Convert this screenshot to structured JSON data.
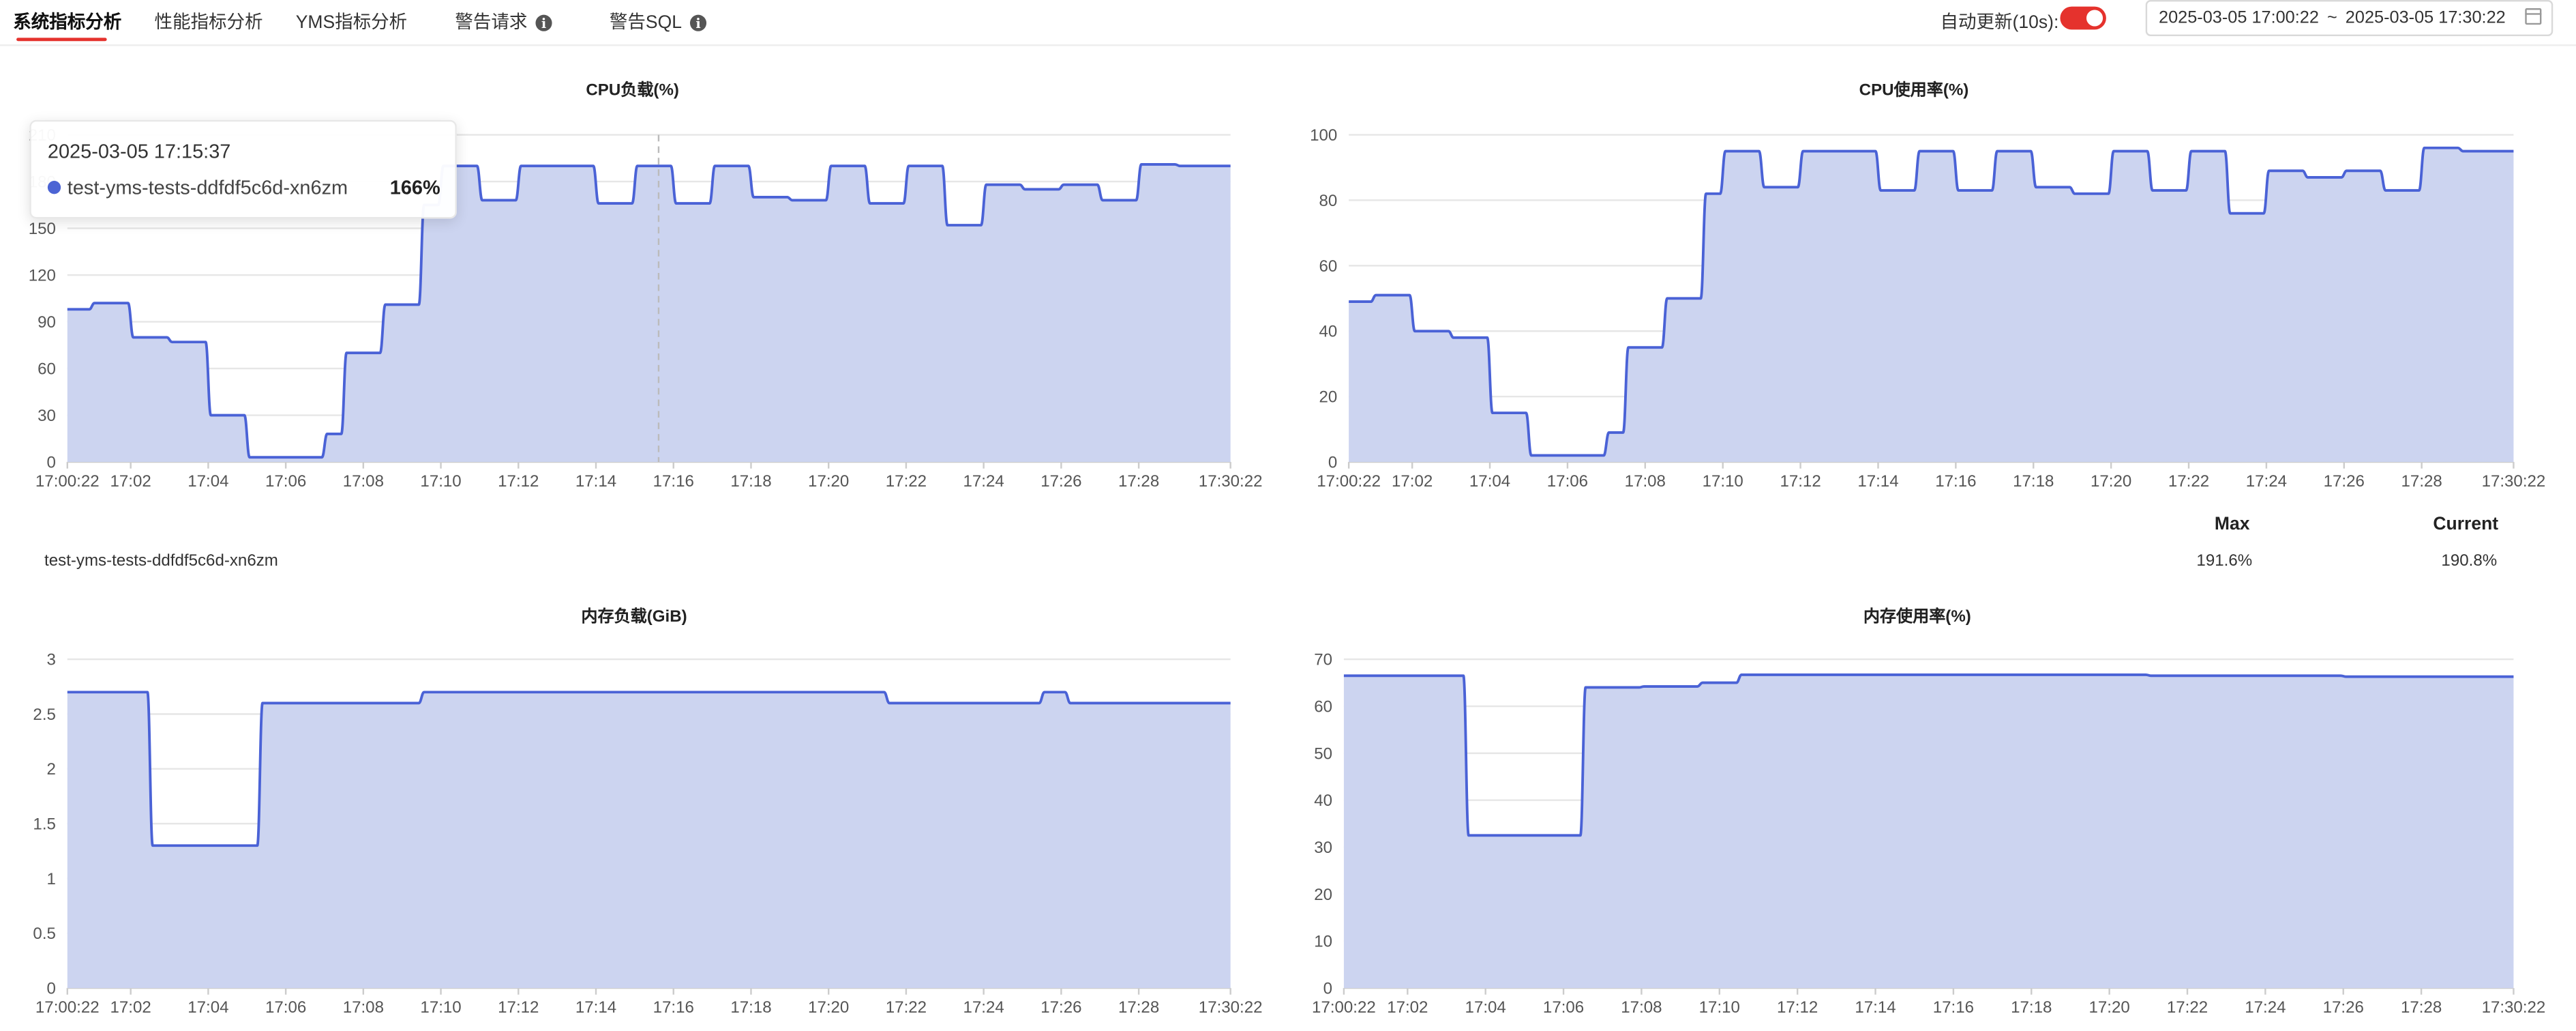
{
  "tabs": [
    {
      "label": "系统指标分析",
      "active": true,
      "info": false
    },
    {
      "label": "性能指标分析",
      "active": false,
      "info": false
    },
    {
      "label": "YMS指标分析",
      "active": false,
      "info": false
    },
    {
      "label": "警告请求",
      "active": false,
      "info": true
    },
    {
      "label": "警告SQL",
      "active": false,
      "info": true
    }
  ],
  "toolbar": {
    "auto_refresh_label": "自动更新(10s):",
    "auto_refresh_on": true,
    "range_start": "2025-03-05 17:00:22",
    "range_sep": "~",
    "range_end": "2025-03-05 17:30:22"
  },
  "colors": {
    "line": "#4a62d6",
    "fill": "#ccd4f0",
    "accent": "#e5322d",
    "grid": "#e6e6e6"
  },
  "tooltip": {
    "time": "2025-03-05 17:15:37",
    "series": "test-yms-tests-ddfdf5c6d-xn6zm",
    "value": "166%",
    "hover_time": "17:15:37"
  },
  "legend": {
    "series": "test-yms-tests-ddfdf5c6d-xn6zm",
    "max_label": "Max",
    "current_label": "Current",
    "max_value": "191.6%",
    "current_value": "190.8%"
  },
  "chart_data": [
    {
      "type": "area",
      "title": "CPU负载(%)",
      "x_start": "17:00:22",
      "x_end": "17:30:22",
      "x_ticks": [
        "17:00:22",
        "17:02",
        "17:04",
        "17:06",
        "17:08",
        "17:10",
        "17:12",
        "17:14",
        "17:16",
        "17:18",
        "17:20",
        "17:22",
        "17:24",
        "17:26",
        "17:28",
        "17:30:22"
      ],
      "y_ticks": [
        0,
        30,
        60,
        90,
        120,
        150,
        180,
        210
      ],
      "ylim": [
        0,
        210
      ],
      "series": [
        {
          "name": "test-yms-tests-ddfdf5c6d-xn6zm",
          "points": [
            [
              "17:00:22",
              98
            ],
            [
              "17:01",
              102
            ],
            [
              "17:02",
              80
            ],
            [
              "17:03",
              77
            ],
            [
              "17:04",
              30
            ],
            [
              "17:05",
              3
            ],
            [
              "17:06",
              3
            ],
            [
              "17:07",
              18
            ],
            [
              "17:07:30",
              70
            ],
            [
              "17:08:30",
              101
            ],
            [
              "17:09:30",
              165
            ],
            [
              "17:10",
              190
            ],
            [
              "17:11",
              168
            ],
            [
              "17:12",
              190
            ],
            [
              "17:14",
              166
            ],
            [
              "17:15",
              190
            ],
            [
              "17:16",
              166
            ],
            [
              "17:17",
              190
            ],
            [
              "17:18",
              170
            ],
            [
              "17:19",
              168
            ],
            [
              "17:20",
              190
            ],
            [
              "17:21",
              166
            ],
            [
              "17:22",
              190
            ],
            [
              "17:23",
              152
            ],
            [
              "17:24",
              178
            ],
            [
              "17:25",
              175
            ],
            [
              "17:26",
              178
            ],
            [
              "17:27",
              168
            ],
            [
              "17:28",
              191
            ],
            [
              "17:29",
              190
            ]
          ]
        }
      ]
    },
    {
      "type": "area",
      "title": "CPU使用率(%)",
      "x_start": "17:00:22",
      "x_end": "17:30:22",
      "x_ticks": [
        "17:00:22",
        "17:02",
        "17:04",
        "17:06",
        "17:08",
        "17:10",
        "17:12",
        "17:14",
        "17:16",
        "17:18",
        "17:20",
        "17:22",
        "17:24",
        "17:26",
        "17:28",
        "17:30:22"
      ],
      "y_ticks": [
        0,
        20,
        40,
        60,
        80,
        100
      ],
      "ylim": [
        0,
        100
      ],
      "series": [
        {
          "name": "test-yms-tests-ddfdf5c6d-xn6zm",
          "points": [
            [
              "17:00:22",
              49
            ],
            [
              "17:01",
              51
            ],
            [
              "17:02",
              40
            ],
            [
              "17:03",
              38
            ],
            [
              "17:04",
              15
            ],
            [
              "17:05",
              2
            ],
            [
              "17:06",
              2
            ],
            [
              "17:07",
              9
            ],
            [
              "17:07:30",
              35
            ],
            [
              "17:08:30",
              50
            ],
            [
              "17:09:30",
              82
            ],
            [
              "17:10",
              95
            ],
            [
              "17:11",
              84
            ],
            [
              "17:12",
              95
            ],
            [
              "17:14",
              83
            ],
            [
              "17:15",
              95
            ],
            [
              "17:16",
              83
            ],
            [
              "17:17",
              95
            ],
            [
              "17:18",
              84
            ],
            [
              "17:19",
              82
            ],
            [
              "17:20",
              95
            ],
            [
              "17:21",
              83
            ],
            [
              "17:22",
              95
            ],
            [
              "17:23",
              76
            ],
            [
              "17:24",
              89
            ],
            [
              "17:25",
              87
            ],
            [
              "17:26",
              89
            ],
            [
              "17:27",
              83
            ],
            [
              "17:28",
              96
            ],
            [
              "17:29",
              95
            ]
          ]
        }
      ]
    },
    {
      "type": "area",
      "title": "内存负载(GiB)",
      "x_start": "17:00:22",
      "x_end": "17:30:22",
      "x_ticks": [
        "17:00:22",
        "17:02",
        "17:04",
        "17:06",
        "17:08",
        "17:10",
        "17:12",
        "17:14",
        "17:16",
        "17:18",
        "17:20",
        "17:22",
        "17:24",
        "17:26",
        "17:28",
        "17:30:22"
      ],
      "y_ticks": [
        "0",
        "0.5",
        "1",
        "1.5",
        "2",
        "2.5",
        "3"
      ],
      "ylim": [
        0,
        3
      ],
      "series": [
        {
          "name": "test-yms-tests-ddfdf5c6d-xn6zm",
          "points": [
            [
              "17:00:22",
              2.7
            ],
            [
              "17:02:30",
              1.3
            ],
            [
              "17:05:20",
              2.6
            ],
            [
              "17:09:30",
              2.7
            ],
            [
              "17:21:30",
              2.6
            ],
            [
              "17:25:30",
              2.7
            ],
            [
              "17:26:10",
              2.6
            ]
          ]
        }
      ]
    },
    {
      "type": "area",
      "title": "内存使用率(%)",
      "x_start": "17:00:22",
      "x_end": "17:30:22",
      "x_ticks": [
        "17:00:22",
        "17:02",
        "17:04",
        "17:06",
        "17:08",
        "17:10",
        "17:12",
        "17:14",
        "17:16",
        "17:18",
        "17:20",
        "17:22",
        "17:24",
        "17:26",
        "17:28",
        "17:30:22"
      ],
      "y_ticks": [
        0,
        10,
        20,
        30,
        40,
        50,
        60,
        70
      ],
      "ylim": [
        0,
        70
      ],
      "series": [
        {
          "name": "test-yms-tests-ddfdf5c6d-xn6zm",
          "points": [
            [
              "17:00:22",
              66.5
            ],
            [
              "17:03:30",
              32.5
            ],
            [
              "17:06:30",
              64
            ],
            [
              "17:08",
              64.2
            ],
            [
              "17:09:30",
              65
            ],
            [
              "17:10:30",
              66.7
            ],
            [
              "17:21",
              66.5
            ],
            [
              "17:26",
              66.3
            ]
          ]
        }
      ]
    }
  ]
}
